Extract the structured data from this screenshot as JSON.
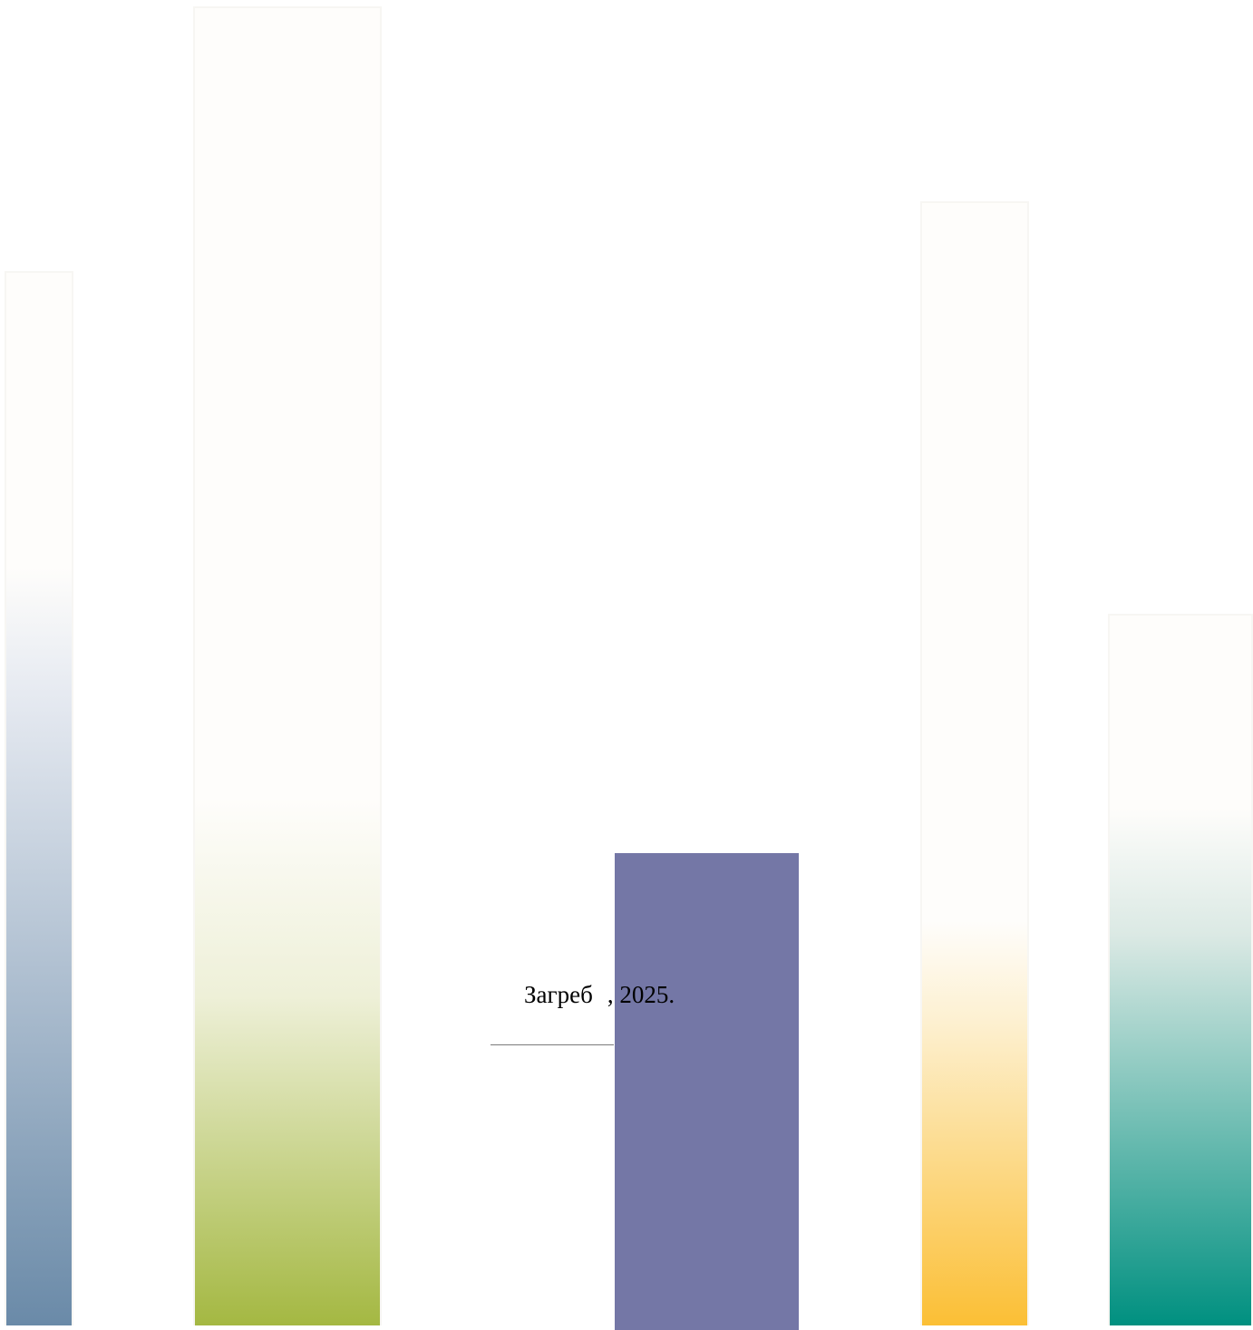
{
  "caption": {
    "city": "Загреб",
    "year_suffix": ", 2025."
  },
  "colors": {
    "bar_1_base": "#6a8aa8",
    "bar_2_base": "#a4b842",
    "bar_3_solid": "#7477a6",
    "bar_4_base": "#fbbf35",
    "bar_5_base": "#009080",
    "bar_fade": "#fefdfb"
  }
}
